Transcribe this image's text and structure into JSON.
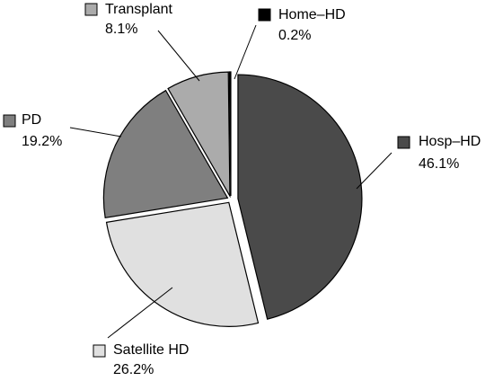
{
  "chart_data": {
    "type": "pie",
    "categories": [
      "Hosp–HD",
      "Satellite HD",
      "PD",
      "Transplant",
      "Home–HD"
    ],
    "values": [
      46.1,
      26.2,
      19.2,
      8.1,
      0.2
    ],
    "value_labels": [
      "46.1%",
      "26.2%",
      "19.2%",
      "8.1%",
      "0.2%"
    ],
    "colors": [
      "#4a4a4a",
      "#e0e0e0",
      "#7f7f7f",
      "#ababab",
      "#000000"
    ]
  }
}
